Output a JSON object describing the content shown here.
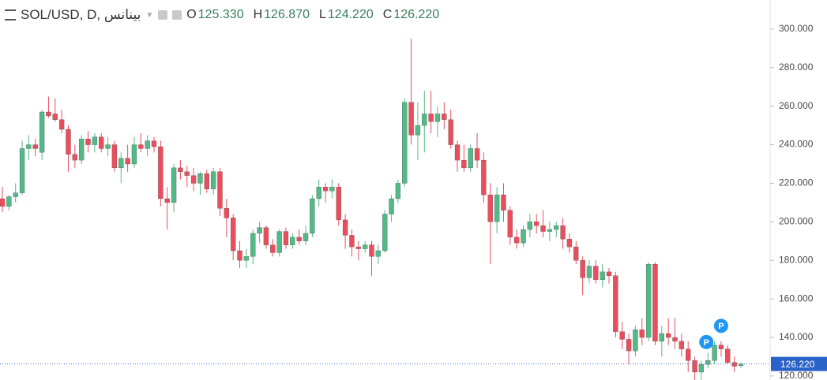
{
  "chart_data": {
    "type": "candlestick",
    "symbol": "SOL/USD, D, بينانس",
    "legend": [
      {
        "name": "O",
        "value": {
          "value": 125.33,
          "label": "125.330"
        }
      },
      {
        "name": "H",
        "value": {
          "value": 126.87,
          "label": "126.870"
        }
      },
      {
        "name": "L",
        "value": {
          "value": 124.22,
          "label": "124.220"
        }
      },
      {
        "name": "C",
        "value": {
          "value": 126.22,
          "label": "126.220"
        }
      }
    ],
    "up_color": "#53b987",
    "down_color": "#eb4d5c",
    "ylim": [
      117.9,
      315.1
    ],
    "yticks": [
      {
        "value": 120,
        "label": "120.000"
      },
      {
        "value": 140,
        "label": "140.000"
      },
      {
        "value": 160,
        "label": "160.000"
      },
      {
        "value": 180,
        "label": "180.000"
      },
      {
        "value": 200,
        "label": "200.000"
      },
      {
        "value": 220,
        "label": "220.000"
      },
      {
        "value": 240,
        "label": "240.000"
      },
      {
        "value": 260,
        "label": "260.000"
      },
      {
        "value": 280,
        "label": "280.000"
      },
      {
        "value": 300,
        "label": "300.000"
      }
    ],
    "current_price": {
      "value": 126.22,
      "label": "126.220"
    },
    "markers": [
      {
        "label": "P",
        "price": 137.6
      },
      {
        "label": "P",
        "price": 146
      }
    ],
    "candles": [
      [
        212,
        218,
        205,
        208
      ],
      [
        208,
        214,
        206,
        213
      ],
      [
        213,
        220,
        210,
        215
      ],
      [
        215,
        242,
        214,
        238
      ],
      [
        238,
        245,
        232,
        240
      ],
      [
        240,
        243,
        234,
        238
      ],
      [
        236,
        258,
        232,
        257
      ],
      [
        257,
        265,
        254,
        255
      ],
      [
        256,
        264,
        252,
        253
      ],
      [
        253,
        258,
        246,
        248
      ],
      [
        248,
        250,
        226,
        235
      ],
      [
        235,
        240,
        228,
        232
      ],
      [
        232,
        245,
        230,
        243
      ],
      [
        243,
        247,
        236,
        240
      ],
      [
        240,
        246,
        236,
        244
      ],
      [
        244,
        246,
        236,
        238
      ],
      [
        238,
        244,
        234,
        240
      ],
      [
        240,
        242,
        226,
        228
      ],
      [
        228,
        236,
        220,
        233
      ],
      [
        233,
        240,
        226,
        230
      ],
      [
        230,
        244,
        228,
        240
      ],
      [
        240,
        246,
        236,
        238
      ],
      [
        238,
        245,
        234,
        242
      ],
      [
        242,
        244,
        236,
        239
      ],
      [
        239,
        242,
        208,
        212
      ],
      [
        212,
        218,
        196,
        210
      ],
      [
        210,
        230,
        205,
        228
      ],
      [
        228,
        232,
        222,
        226
      ],
      [
        226,
        229,
        218,
        224
      ],
      [
        224,
        228,
        216,
        220
      ],
      [
        220,
        226,
        214,
        225
      ],
      [
        225,
        227,
        215,
        217
      ],
      [
        217,
        228,
        214,
        226
      ],
      [
        226,
        228,
        203,
        207
      ],
      [
        207,
        212,
        192,
        202
      ],
      [
        202,
        204,
        180,
        185
      ],
      [
        185,
        190,
        176,
        180
      ],
      [
        180,
        186,
        176,
        182
      ],
      [
        182,
        196,
        178,
        194
      ],
      [
        194,
        200,
        189,
        197
      ],
      [
        197,
        198,
        186,
        188
      ],
      [
        188,
        191,
        182,
        184
      ],
      [
        184,
        196,
        182,
        195
      ],
      [
        195,
        197,
        186,
        188
      ],
      [
        188,
        194,
        186,
        192
      ],
      [
        192,
        196,
        188,
        190
      ],
      [
        190,
        198,
        188,
        194
      ],
      [
        194,
        214,
        192,
        212
      ],
      [
        212,
        222,
        208,
        218
      ],
      [
        218,
        220,
        210,
        216
      ],
      [
        216,
        222,
        212,
        218
      ],
      [
        218,
        220,
        198,
        201
      ],
      [
        201,
        204,
        186,
        193
      ],
      [
        193,
        196,
        182,
        187
      ],
      [
        187,
        190,
        180,
        186
      ],
      [
        186,
        190,
        184,
        188
      ],
      [
        188,
        190,
        172,
        182
      ],
      [
        182,
        188,
        178,
        185
      ],
      [
        185,
        206,
        184,
        204
      ],
      [
        204,
        214,
        200,
        212
      ],
      [
        212,
        222,
        210,
        220
      ],
      [
        220,
        264,
        218,
        262
      ],
      [
        262,
        295,
        240,
        245
      ],
      [
        245,
        262,
        232,
        250
      ],
      [
        250,
        268,
        236,
        256
      ],
      [
        256,
        268,
        246,
        252
      ],
      [
        252,
        260,
        244,
        256
      ],
      [
        256,
        262,
        248,
        253
      ],
      [
        253,
        258,
        238,
        240
      ],
      [
        240,
        242,
        226,
        232
      ],
      [
        232,
        240,
        226,
        228
      ],
      [
        228,
        240,
        226,
        238
      ],
      [
        238,
        246,
        228,
        232
      ],
      [
        232,
        236,
        210,
        214
      ],
      [
        214,
        220,
        178,
        200
      ],
      [
        200,
        218,
        194,
        214
      ],
      [
        214,
        220,
        200,
        206
      ],
      [
        206,
        208,
        188,
        192
      ],
      [
        192,
        196,
        186,
        189
      ],
      [
        189,
        198,
        187,
        196
      ],
      [
        196,
        204,
        192,
        200
      ],
      [
        200,
        204,
        194,
        198
      ],
      [
        198,
        206,
        192,
        195
      ],
      [
        195,
        200,
        190,
        196
      ],
      [
        196,
        200,
        192,
        198
      ],
      [
        198,
        202,
        186,
        191
      ],
      [
        191,
        194,
        184,
        187
      ],
      [
        187,
        190,
        178,
        180
      ],
      [
        180,
        182,
        162,
        171
      ],
      [
        171,
        180,
        168,
        177
      ],
      [
        177,
        180,
        168,
        170
      ],
      [
        170,
        178,
        166,
        174
      ],
      [
        174,
        176,
        168,
        172
      ],
      [
        172,
        174,
        140,
        143
      ],
      [
        143,
        148,
        134,
        139
      ],
      [
        139,
        142,
        126,
        133
      ],
      [
        133,
        146,
        130,
        144
      ],
      [
        144,
        150,
        136,
        140
      ],
      [
        140,
        179,
        138,
        178
      ],
      [
        178,
        179,
        136,
        138
      ],
      [
        138,
        146,
        130,
        142
      ],
      [
        142,
        150,
        136,
        140
      ],
      [
        140,
        150,
        134,
        138
      ],
      [
        138,
        142,
        130,
        134
      ],
      [
        134,
        138,
        122,
        128
      ],
      [
        128,
        130,
        118,
        122
      ],
      [
        122,
        128,
        118,
        126
      ],
      [
        126,
        132,
        124,
        128
      ],
      [
        128,
        138,
        126,
        136
      ],
      [
        136,
        138,
        130,
        134
      ],
      [
        134,
        136,
        126,
        127
      ],
      [
        127,
        130,
        122,
        125
      ],
      [
        125.33,
        126.87,
        124.22,
        126.22
      ]
    ]
  }
}
